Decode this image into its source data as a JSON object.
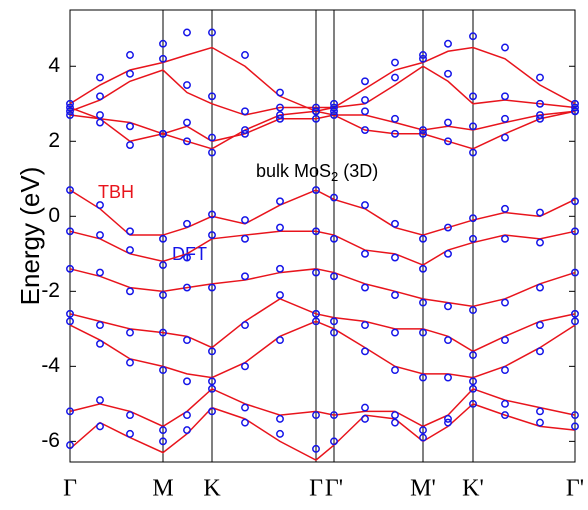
{
  "chart_data": {
    "type": "band",
    "y_label": "Energy (eV)",
    "annotations": [
      {
        "text": "TBH",
        "color": "#e8141c"
      },
      {
        "text": "DFT",
        "color": "#1414e8"
      },
      {
        "text": "bulk MoS",
        "subscript": "2",
        "suffix": " (3D)",
        "color": "#000000"
      }
    ],
    "xlim": [
      0,
      5.05
    ],
    "ylim": [
      -6.55,
      5.5
    ],
    "xticks": [
      {
        "value": 0,
        "label": "Γ"
      },
      {
        "value": 0.93,
        "label": "M"
      },
      {
        "value": 1.42,
        "label": "K"
      },
      {
        "value": 2.46,
        "label": "Γ"
      },
      {
        "value": 2.64,
        "label": "Γ'"
      },
      {
        "value": 3.53,
        "label": "M'"
      },
      {
        "value": 4.03,
        "label": "K'"
      },
      {
        "value": 5.05,
        "label": "Γ'"
      }
    ],
    "yticks": [
      -6,
      -4,
      -2,
      0,
      2,
      4
    ],
    "x": [
      0,
      0.3,
      0.6,
      0.93,
      1.17,
      1.42,
      1.75,
      2.1,
      2.46,
      2.64,
      2.95,
      3.25,
      3.53,
      3.78,
      4.03,
      4.35,
      4.7,
      5.05
    ],
    "series": [
      {
        "name": "TBH",
        "color": "#e8141c",
        "style": "line",
        "bands": [
          [
            0.7,
            0.2,
            -0.5,
            -0.5,
            -0.3,
            0.0,
            -0.2,
            0.3,
            0.7,
            0.45,
            0.2,
            -0.3,
            -0.5,
            -0.3,
            -0.1,
            0.1,
            0.0,
            0.45
          ],
          [
            -0.4,
            -0.6,
            -1.0,
            -1.2,
            -1.0,
            -0.6,
            -0.5,
            -0.4,
            -0.4,
            -0.5,
            -0.9,
            -1.0,
            -1.3,
            -0.9,
            -0.7,
            -0.5,
            -0.6,
            -0.4
          ],
          [
            -1.4,
            -1.6,
            -1.9,
            -2.0,
            -1.9,
            -1.8,
            -1.7,
            -1.5,
            -1.4,
            -1.5,
            -1.8,
            -2.0,
            -2.2,
            -2.3,
            -2.4,
            -2.2,
            -1.8,
            -1.5
          ],
          [
            -2.6,
            -2.8,
            -3.0,
            -3.1,
            -3.2,
            -3.5,
            -2.8,
            -2.2,
            -2.6,
            -2.7,
            -2.8,
            -3.0,
            -3.0,
            -3.2,
            -3.6,
            -3.2,
            -2.8,
            -2.6
          ],
          [
            -2.9,
            -3.3,
            -3.8,
            -4.0,
            -4.2,
            -4.3,
            -3.9,
            -3.2,
            -2.8,
            -3.0,
            -3.5,
            -4.0,
            -4.2,
            -4.2,
            -4.3,
            -4.0,
            -3.5,
            -2.9
          ],
          [
            -5.2,
            -5.0,
            -5.2,
            -5.6,
            -5.2,
            -4.6,
            -5.0,
            -5.3,
            -5.2,
            -5.3,
            -5.2,
            -5.2,
            -5.6,
            -5.3,
            -4.6,
            -4.9,
            -5.1,
            -5.3
          ],
          [
            -6.2,
            -5.5,
            -5.9,
            -6.3,
            -5.8,
            -5.1,
            -5.4,
            -6.0,
            -6.5,
            -6.1,
            -5.3,
            -5.4,
            -6.0,
            -5.6,
            -5.0,
            -5.3,
            -5.6,
            -5.7
          ],
          [
            2.9,
            2.6,
            2.0,
            2.2,
            2.0,
            1.8,
            2.3,
            2.7,
            2.8,
            2.7,
            2.3,
            2.2,
            2.2,
            2.0,
            1.8,
            2.2,
            2.6,
            2.8
          ],
          [
            2.7,
            2.6,
            2.5,
            2.2,
            2.4,
            2.0,
            2.2,
            2.6,
            2.6,
            2.7,
            2.7,
            2.5,
            2.3,
            2.4,
            2.3,
            2.5,
            2.7,
            2.8
          ],
          [
            2.8,
            3.1,
            3.6,
            3.9,
            3.3,
            3.0,
            2.7,
            2.9,
            2.9,
            2.9,
            3.0,
            3.5,
            4.0,
            3.6,
            3.0,
            3.1,
            3.0,
            2.9
          ],
          [
            3.0,
            3.5,
            3.9,
            4.1,
            4.3,
            4.5,
            4.0,
            3.2,
            2.8,
            2.9,
            3.4,
            3.9,
            4.1,
            4.4,
            4.5,
            4.2,
            3.5,
            3.0
          ]
        ]
      },
      {
        "name": "DFT",
        "color": "#1414e8",
        "style": "circle",
        "bands": [
          [
            0.7,
            0.3,
            -0.4,
            -0.6,
            -0.2,
            0.05,
            -0.1,
            0.4,
            0.7,
            0.5,
            0.3,
            -0.2,
            -0.6,
            -0.3,
            -0.05,
            0.2,
            0.1,
            0.4
          ],
          [
            -0.4,
            -0.5,
            -0.9,
            -1.3,
            -1.1,
            -0.5,
            -0.6,
            -0.3,
            -0.4,
            -0.6,
            -1.0,
            -1.1,
            -1.4,
            -1.0,
            -0.6,
            -0.6,
            -0.7,
            -0.4
          ],
          [
            -1.4,
            -1.5,
            -2.0,
            -2.1,
            -1.9,
            -1.9,
            -1.6,
            -1.4,
            -1.5,
            -1.6,
            -1.9,
            -2.1,
            -2.3,
            -2.4,
            -2.5,
            -2.3,
            -1.9,
            -1.5
          ],
          [
            -2.6,
            -2.9,
            -3.1,
            -3.1,
            -3.3,
            -3.6,
            -2.9,
            -2.1,
            -2.6,
            -2.8,
            -2.9,
            -3.1,
            -3.1,
            -3.3,
            -3.7,
            -3.3,
            -2.9,
            -2.6
          ],
          [
            -2.8,
            -3.4,
            -3.9,
            -4.1,
            -4.4,
            -4.4,
            -4.0,
            -3.3,
            -2.8,
            -3.1,
            -3.6,
            -4.1,
            -4.3,
            -4.3,
            -4.4,
            -4.1,
            -3.6,
            -2.8
          ],
          [
            -5.2,
            -4.9,
            -5.3,
            -5.7,
            -5.3,
            -4.6,
            -5.1,
            -5.4,
            -5.3,
            -5.3,
            -5.1,
            -5.3,
            -5.7,
            -5.4,
            -4.6,
            -5.0,
            -5.2,
            -5.3
          ],
          [
            -6.1,
            -5.6,
            -5.8,
            -6.0,
            -5.7,
            -5.2,
            -5.5,
            -5.8,
            -6.2,
            -6.0,
            -5.4,
            -5.5,
            -5.9,
            -5.5,
            -5.0,
            -5.3,
            -5.5,
            -5.6
          ],
          [
            2.9,
            2.5,
            1.9,
            2.2,
            2.0,
            1.7,
            2.2,
            2.7,
            2.8,
            2.7,
            2.3,
            2.2,
            2.2,
            2.0,
            1.7,
            2.1,
            2.6,
            2.8
          ],
          [
            2.7,
            2.7,
            2.4,
            2.2,
            2.5,
            2.1,
            2.3,
            2.6,
            2.6,
            2.8,
            2.8,
            2.6,
            2.3,
            2.5,
            2.4,
            2.6,
            2.7,
            2.8
          ],
          [
            2.8,
            3.2,
            3.8,
            4.2,
            3.5,
            3.2,
            2.8,
            2.9,
            2.9,
            2.9,
            3.1,
            3.7,
            4.2,
            3.8,
            3.2,
            3.2,
            3.0,
            2.9
          ],
          [
            3.0,
            3.7,
            4.3,
            4.6,
            4.9,
            4.9,
            4.3,
            3.3,
            2.8,
            3.0,
            3.6,
            4.1,
            4.3,
            4.6,
            4.8,
            4.5,
            3.7,
            3.0
          ]
        ]
      }
    ]
  }
}
